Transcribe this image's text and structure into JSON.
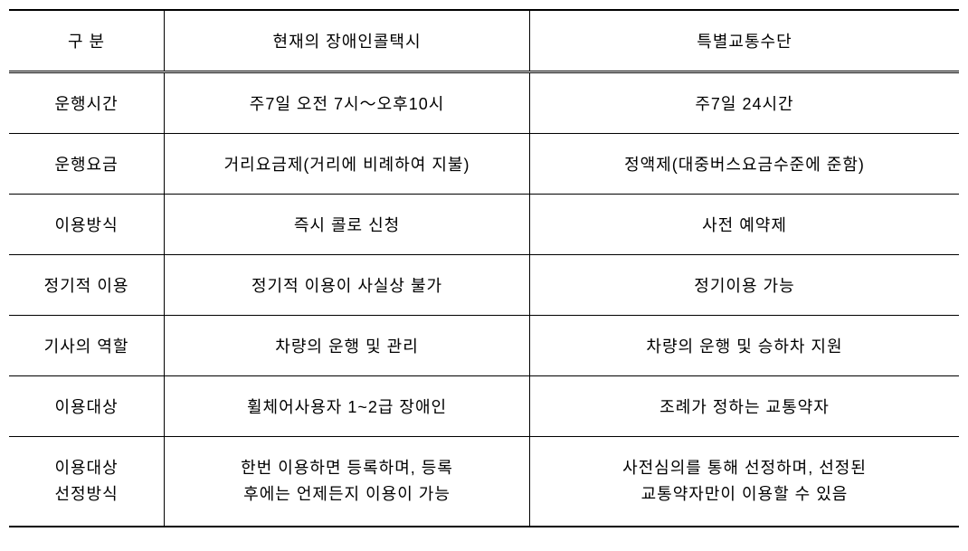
{
  "table": {
    "headers": {
      "category": "구 분",
      "current": "현재의 장애인콜택시",
      "special": "특별교통수단"
    },
    "rows": [
      {
        "category": "운행시간",
        "current": "주7일 오전 7시～오후10시",
        "special": "주7일 24시간"
      },
      {
        "category": "운행요금",
        "current": "거리요금제(거리에 비례하여 지불)",
        "special": "정액제(대중버스요금수준에 준함)"
      },
      {
        "category": "이용방식",
        "current": "즉시 콜로 신청",
        "special": "사전 예약제"
      },
      {
        "category": "정기적 이용",
        "current": "정기적 이용이 사실상 불가",
        "special": "정기이용 가능"
      },
      {
        "category": "기사의 역할",
        "current": "차량의 운행 및 관리",
        "special": "차량의 운행 및 승하차 지원"
      },
      {
        "category": "이용대상",
        "current": "휠체어사용자 1~2급 장애인",
        "special": "조례가 정하는 교통약자"
      },
      {
        "category_line1": "이용대상",
        "category_line2": "선정방식",
        "current_line1": "한번 이용하면 등록하며, 등록",
        "current_line2": "후에는 언제든지 이용이 가능",
        "special_line1": "사전심의를 통해 선정하며, 선정된",
        "special_line2": "교통약자만이 이용할 수 있음"
      }
    ],
    "styling": {
      "border_color": "#000000",
      "background_color": "#ffffff",
      "text_color": "#000000",
      "font_size": 18,
      "header_top_border_width": 2,
      "header_bottom_border_width": 1,
      "row_bottom_border_width": 2,
      "first_row_top_border_style": "double"
    }
  }
}
